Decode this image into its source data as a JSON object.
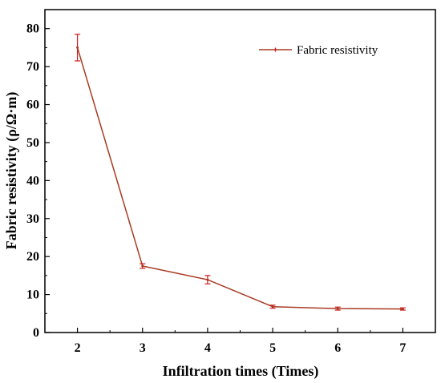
{
  "chart_data": {
    "type": "line",
    "xlabel": "Infiltration times (Times)",
    "ylabel": "Fabric resistivity (ρ/Ω·m)",
    "x": [
      2,
      3,
      4,
      5,
      6,
      7
    ],
    "xlim": [
      1.5,
      7.5
    ],
    "ylim": [
      0,
      85
    ],
    "xticks": [
      "2",
      "3",
      "4",
      "5",
      "6",
      "7"
    ],
    "yticks": [
      "0",
      "10",
      "20",
      "30",
      "40",
      "50",
      "60",
      "70",
      "80"
    ],
    "grid": false,
    "legend_position": "top-right",
    "series": [
      {
        "name": "Fabric resistivity",
        "values": [
          75.0,
          17.5,
          13.9,
          6.8,
          6.3,
          6.2
        ],
        "errors": [
          3.5,
          0.6,
          1.1,
          0.4,
          0.4,
          0.3
        ],
        "color": "#a83a22",
        "error_color": "#d11a1a"
      }
    ]
  }
}
